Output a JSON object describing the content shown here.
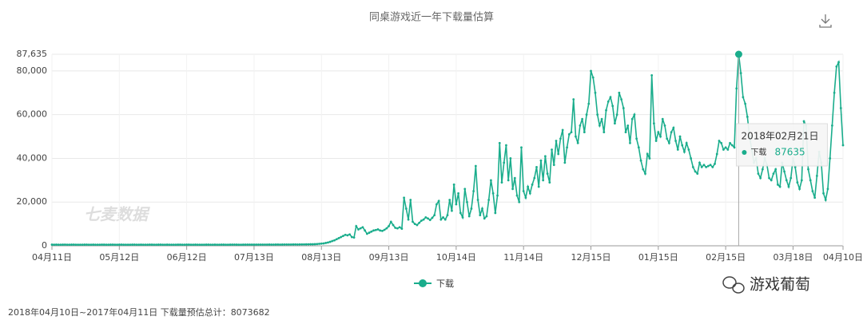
{
  "chart_data": {
    "type": "line",
    "title": "同桌游戏近一年下载量估算",
    "categories": [
      "04月11日",
      null,
      null,
      null,
      null,
      null,
      null,
      null,
      null,
      null,
      null,
      null,
      null,
      null,
      null,
      null,
      null,
      null,
      null,
      null,
      null,
      null,
      null,
      null,
      null,
      null,
      null,
      null,
      null,
      null,
      null,
      "05月12日",
      null,
      null,
      null,
      null,
      null,
      null,
      null,
      null,
      null,
      null,
      null,
      null,
      null,
      null,
      null,
      null,
      null,
      null,
      null,
      null,
      null,
      null,
      null,
      null,
      null,
      null,
      null,
      null,
      null,
      null,
      "06月12日",
      null,
      null,
      null,
      null,
      null,
      null,
      null,
      null,
      null,
      null,
      null,
      null,
      null,
      null,
      null,
      null,
      null,
      null,
      null,
      null,
      null,
      null,
      null,
      null,
      null,
      null,
      null,
      null,
      null,
      null,
      "07月13日",
      null,
      null,
      null,
      null,
      null,
      null,
      null,
      null,
      null,
      null,
      null,
      null,
      null,
      null,
      null,
      null,
      null,
      null,
      null,
      null,
      null,
      null,
      null,
      null,
      null,
      null,
      null,
      null,
      null,
      null,
      "08月13日",
      null,
      null,
      null,
      null,
      null,
      null,
      null,
      null,
      null,
      null,
      null,
      null,
      null,
      null,
      null,
      null,
      null,
      null,
      null,
      null,
      null,
      null,
      null,
      null,
      null,
      null,
      null,
      null,
      null,
      null,
      "09月13日",
      null,
      null,
      null,
      null,
      null,
      null,
      null,
      null,
      null,
      null,
      null,
      null,
      null,
      null,
      null,
      null,
      null,
      null,
      null,
      null,
      null,
      null,
      null,
      null,
      null,
      null,
      null,
      null,
      null,
      null,
      "10月14日",
      null,
      null,
      null,
      null,
      null,
      null,
      null,
      null,
      null,
      null,
      null,
      null,
      null,
      null,
      null,
      null,
      null,
      null,
      null,
      null,
      null,
      null,
      null,
      null,
      null,
      null,
      null,
      null,
      null,
      null,
      "11月14日",
      null,
      null,
      null,
      null,
      null,
      null,
      null,
      null,
      null,
      null,
      null,
      null,
      null,
      null,
      null,
      null,
      null,
      null,
      null,
      null,
      null,
      null,
      null,
      null,
      null,
      null,
      null,
      null,
      null,
      null,
      "12月15日",
      null,
      null,
      null,
      null,
      null,
      null,
      null,
      null,
      null,
      null,
      null,
      null,
      null,
      null,
      null,
      null,
      null,
      null,
      null,
      null,
      null,
      null,
      null,
      null,
      null,
      null,
      null,
      null,
      null,
      null,
      "01月15日",
      null,
      null,
      null,
      null,
      null,
      null,
      null,
      null,
      null,
      null,
      null,
      null,
      null,
      null,
      null,
      null,
      null,
      null,
      null,
      null,
      null,
      null,
      null,
      null,
      null,
      null,
      null,
      null,
      null,
      null,
      "02月15日",
      null,
      null,
      null,
      null,
      null,
      null,
      null,
      null,
      null,
      null,
      null,
      null,
      null,
      null,
      null,
      null,
      null,
      null,
      null,
      null,
      null,
      null,
      null,
      null,
      null,
      null,
      null,
      null,
      null,
      null,
      "03月18日",
      null,
      null,
      null,
      null,
      null,
      null,
      null,
      null,
      null,
      null,
      null,
      null,
      null,
      null,
      null,
      null,
      null,
      null,
      null,
      null,
      null,
      null,
      "04月10日"
    ],
    "series": [
      {
        "name": "下载",
        "color": "#1aad8c",
        "values": [
          520,
          510,
          530,
          500,
          490,
          520,
          540,
          510,
          500,
          520,
          530,
          510,
          500,
          490,
          510,
          520,
          530,
          500,
          510,
          520,
          500,
          490,
          510,
          530,
          520,
          500,
          510,
          520,
          530,
          510,
          500,
          520,
          540,
          510,
          500,
          490,
          510,
          520,
          530,
          500,
          510,
          520,
          500,
          490,
          510,
          530,
          520,
          500,
          510,
          520,
          530,
          510,
          500,
          520,
          510,
          500,
          490,
          510,
          520,
          530,
          500,
          510,
          520,
          530,
          510,
          500,
          520,
          510,
          500,
          490,
          510,
          520,
          530,
          500,
          510,
          520,
          500,
          510,
          530,
          520,
          510,
          500,
          520,
          530,
          540,
          520,
          510,
          500,
          520,
          530,
          540,
          550,
          530,
          520,
          540,
          550,
          560,
          540,
          550,
          560,
          570,
          560,
          550,
          570,
          580,
          560,
          570,
          590,
          600,
          580,
          600,
          610,
          620,
          600,
          630,
          640,
          650,
          660,
          680,
          700,
          700,
          750,
          800,
          900,
          1000,
          1100,
          1300,
          1500,
          1800,
          2200,
          2500,
          3000,
          3500,
          4000,
          4500,
          5000,
          4800,
          5200,
          4000,
          3800,
          9000,
          7500,
          8000,
          8500,
          7000,
          5500,
          6000,
          6500,
          7000,
          7200,
          7500,
          7000,
          6800,
          7300,
          8000,
          9000,
          11000,
          9500,
          8200,
          8000,
          8500,
          7800,
          22000,
          17000,
          12000,
          21000,
          11000,
          10000,
          9500,
          10500,
          11500,
          12000,
          13000,
          12500,
          11800,
          12800,
          14000,
          19000,
          20500,
          12000,
          13000,
          12000,
          14000,
          21000,
          16000,
          28000,
          19000,
          24000,
          15000,
          13000,
          26000,
          20000,
          13500,
          17000,
          25000,
          36500,
          21000,
          14000,
          17000,
          12500,
          13500,
          21000,
          30000,
          24000,
          15000,
          23000,
          47000,
          29000,
          38000,
          46000,
          30000,
          40000,
          26000,
          31000,
          23000,
          20000,
          45000,
          25000,
          22000,
          27000,
          24000,
          28000,
          31000,
          36000,
          27000,
          39000,
          30000,
          41000,
          33000,
          29000,
          44000,
          37000,
          48000,
          42000,
          49000,
          53000,
          38000,
          45000,
          51000,
          52000,
          67000,
          50000,
          47000,
          55000,
          58000,
          52000,
          60000,
          65000,
          80000,
          77000,
          70000,
          60000,
          55000,
          58000,
          52000,
          62000,
          66000,
          68000,
          64000,
          56000,
          60000,
          70000,
          67000,
          63000,
          52000,
          55000,
          47000,
          58000,
          60000,
          49000,
          45000,
          39000,
          35000,
          33000,
          42000,
          40000,
          78000,
          56000,
          48000,
          52000,
          50000,
          58000,
          55000,
          49000,
          47000,
          52000,
          54000,
          48000,
          44000,
          50000,
          46000,
          43000,
          47000,
          44000,
          40000,
          36000,
          34000,
          33000,
          38000,
          36000,
          37000,
          36000,
          36500,
          37000,
          36000,
          37500,
          42000,
          48000,
          47000,
          44000,
          45000,
          44000,
          47000,
          46000,
          45000,
          72000,
          87635,
          79000,
          68000,
          65000,
          59000,
          50000,
          44000,
          38000,
          40000,
          33000,
          31000,
          35000,
          40000,
          37000,
          31000,
          30000,
          33000,
          35000,
          28000,
          27000,
          38000,
          34000,
          30000,
          27000,
          31000,
          40000,
          36000,
          29000,
          26000,
          30000,
          57000,
          55000,
          35000,
          30000,
          25000,
          22000,
          32000,
          43000,
          38000,
          24000,
          21000,
          26000,
          40000,
          55000,
          70000,
          82000,
          84000,
          63000,
          46000
        ]
      }
    ],
    "ylim": [
      0,
      87635
    ],
    "yticks": [
      0,
      {
        "value": 20000,
        "label": "20,000"
      },
      {
        "value": 40000,
        "label": "40,000"
      },
      {
        "value": 60000,
        "label": "60,000"
      },
      {
        "value": 80000,
        "label": "80,000"
      },
      {
        "value": 87635,
        "label": "87,635"
      }
    ],
    "grid": true,
    "tooltip": {
      "date": "2018年02月21日"
    }
  },
  "page": {
    "watermark": "七麦数据",
    "brand": "游戏葡萄",
    "footer": "2018年04月10日~2017年04月11日 下载量预估总计：8073682"
  }
}
